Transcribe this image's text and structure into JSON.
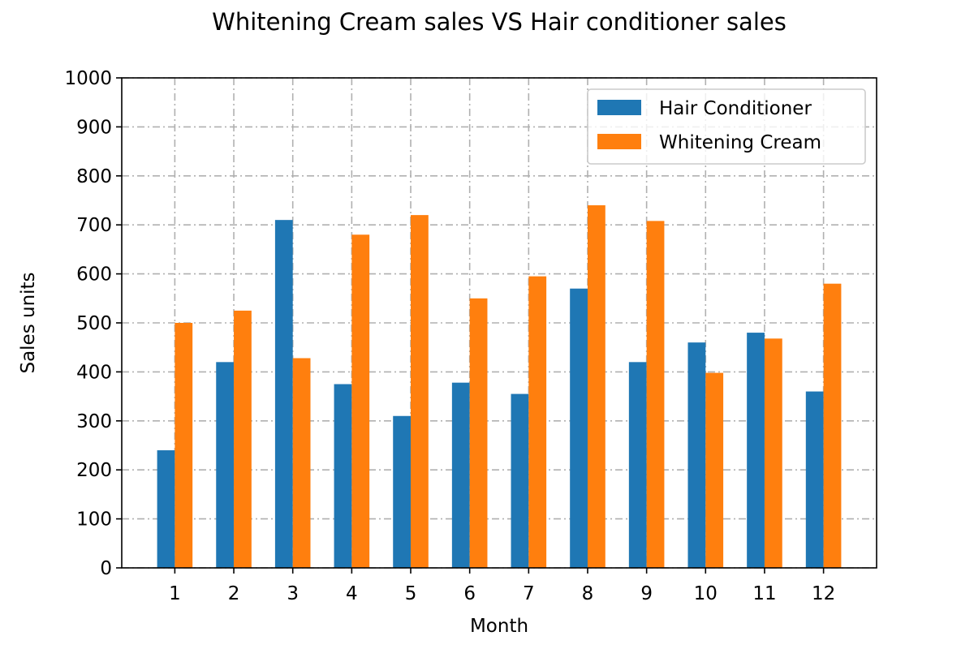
{
  "chart_data": {
    "type": "bar",
    "title": "Whitening Cream sales VS Hair conditioner sales",
    "xlabel": "Month",
    "ylabel": "Sales units",
    "categories": [
      "1",
      "2",
      "3",
      "4",
      "5",
      "6",
      "7",
      "8",
      "9",
      "10",
      "11",
      "12"
    ],
    "ylim": [
      0,
      1000
    ],
    "yticks": [
      0,
      100,
      200,
      300,
      400,
      500,
      600,
      700,
      800,
      900,
      1000
    ],
    "grid": true,
    "legend_position": "top-right",
    "series": [
      {
        "name": "Hair Conditioner",
        "color": "#1f77b4",
        "values": [
          240,
          420,
          710,
          375,
          310,
          378,
          355,
          570,
          420,
          460,
          480,
          360
        ]
      },
      {
        "name": "Whitening Cream",
        "color": "#ff7f0e",
        "values": [
          500,
          525,
          428,
          680,
          720,
          550,
          595,
          740,
          708,
          398,
          468,
          580
        ]
      }
    ]
  }
}
